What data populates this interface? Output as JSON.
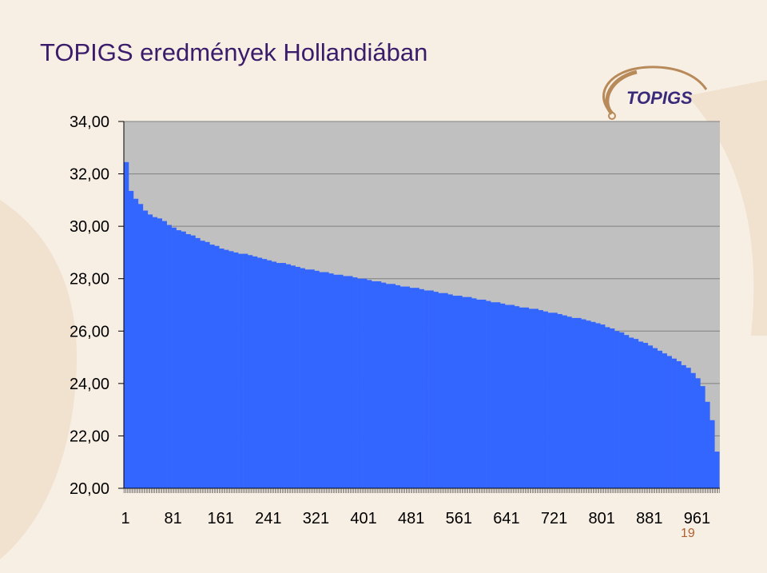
{
  "slide": {
    "title": "TOPIGS eredmények Hollandiában",
    "page_number": "19",
    "logo_text": "TOPIGS"
  },
  "colors": {
    "background": "#f8efe4",
    "title": "#3a1c6b",
    "plot_area": "#c0c0c0",
    "series_fill": "#3366ff",
    "logo_swoosh": "#b88a5a",
    "logo_text": "#3a2a7a",
    "page_number": "#b06030"
  },
  "chart_data": {
    "type": "bar",
    "title": "",
    "xlabel": "",
    "ylabel": "",
    "ylim": [
      20,
      34
    ],
    "yticks": [
      "34,00",
      "32,00",
      "30,00",
      "28,00",
      "26,00",
      "24,00",
      "22,00",
      "20,00"
    ],
    "ytick_values": [
      34,
      32,
      30,
      28,
      26,
      24,
      22,
      20
    ],
    "xticks": [
      "1",
      "81",
      "161",
      "241",
      "321",
      "401",
      "481",
      "561",
      "641",
      "721",
      "801",
      "881",
      "961"
    ],
    "xtick_values": [
      1,
      81,
      161,
      241,
      321,
      401,
      481,
      561,
      641,
      721,
      801,
      881,
      961
    ],
    "x_range": [
      1,
      1002
    ],
    "grid": "horizontal",
    "legend": "none",
    "series": [
      {
        "profile_x": [
          1,
          4,
          8,
          12,
          16,
          20,
          30,
          40,
          60,
          90,
          130,
          170,
          230,
          300,
          400,
          500,
          600,
          700,
          760,
          800,
          840,
          880,
          920,
          950,
          965,
          975,
          985,
          993,
          998,
          1002
        ],
        "profile_y": [
          32.8,
          32.6,
          32.0,
          31.4,
          31.2,
          31.1,
          30.8,
          30.5,
          30.3,
          29.9,
          29.5,
          29.1,
          28.8,
          28.4,
          28.0,
          27.6,
          27.2,
          26.8,
          26.5,
          26.3,
          25.9,
          25.5,
          25.0,
          24.6,
          24.2,
          23.8,
          23.0,
          22.2,
          21.2,
          20.0
        ]
      }
    ]
  }
}
